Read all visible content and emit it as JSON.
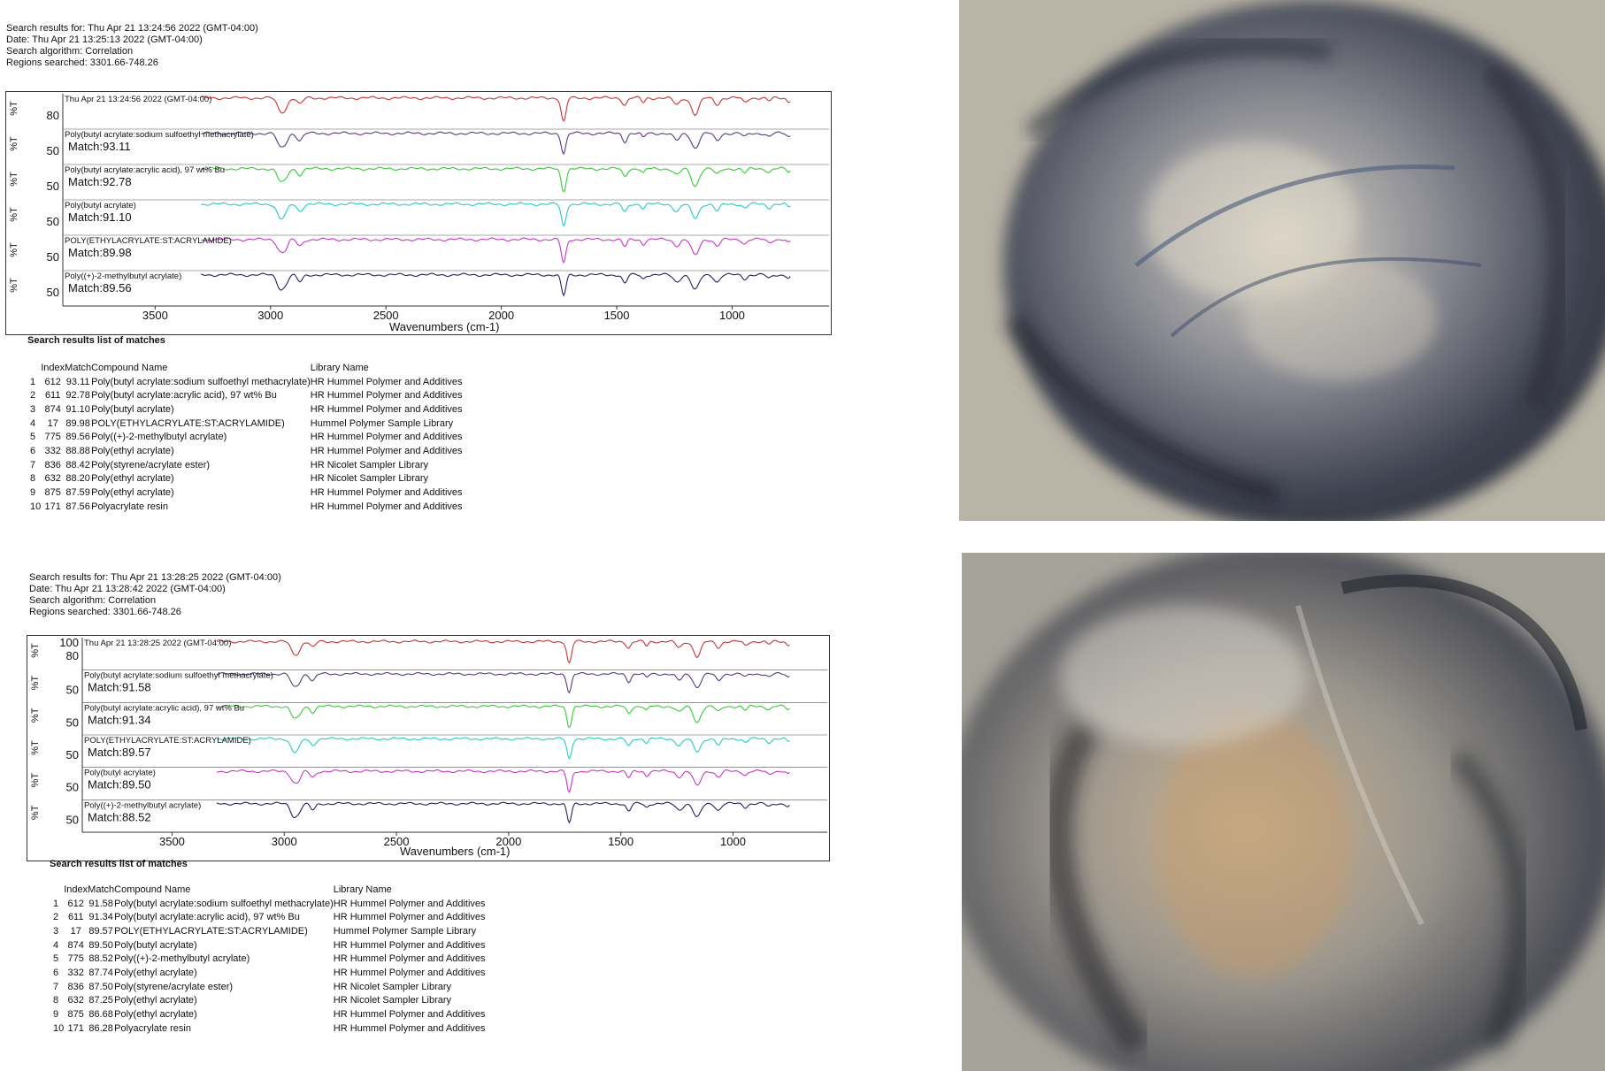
{
  "chart_data": [
    {
      "type": "line",
      "header": [
        "Search results for:  Thu Apr 21 13:24:56 2022 (GMT-04:00)",
        "Date:  Thu Apr 21 13:25:13 2022 (GMT-04:00)",
        "Search algorithm:  Correlation",
        "Regions searched:  3301.66-748.26"
      ],
      "xlabel": "Wavenumbers (cm-1)",
      "ylabel": "%T",
      "x_ticks": [
        3500,
        3000,
        2500,
        2000,
        1500,
        1000
      ],
      "xlim": [
        3900,
        580
      ],
      "series": [
        {
          "name": "Thu Apr 21 13:24:56 2022 (GMT-04:00)",
          "match": "",
          "y_tick": "80",
          "color": "#cc3333"
        },
        {
          "name": "Poly(butyl acrylate:sodium sulfoethyl methacrylate)",
          "match": "Match:93.11",
          "y_tick": "50",
          "color": "#5a3a82"
        },
        {
          "name": "Poly(butyl acrylate:acrylic acid), 97 wt% Bu",
          "match": "Match:92.78",
          "y_tick": "50",
          "color": "#33cc33"
        },
        {
          "name": "Poly(butyl acrylate)",
          "match": "Match:91.10",
          "y_tick": "50",
          "color": "#22cccc"
        },
        {
          "name": "POLY(ETHYLACRYLATE:ST:ACRYLAMIDE)",
          "match": "Match:89.98",
          "y_tick": "50",
          "color": "#cc33cc"
        },
        {
          "name": "Poly((+)-2-methylbutyl acrylate)",
          "match": "Match:89.56",
          "y_tick": "50",
          "color": "#222266"
        }
      ],
      "list_title": "Search results list of matches",
      "columns": [
        "Index",
        "Match",
        "Compound Name",
        "Library Name"
      ],
      "rows": [
        [
          "1",
          "612",
          "93.11",
          "Poly(butyl acrylate:sodium sulfoethyl methacrylate)",
          "HR Hummel Polymer and Additives"
        ],
        [
          "2",
          "611",
          "92.78",
          "Poly(butyl acrylate:acrylic acid), 97 wt% Bu",
          "HR Hummel Polymer and Additives"
        ],
        [
          "3",
          "874",
          "91.10",
          "Poly(butyl acrylate)",
          "HR Hummel Polymer and Additives"
        ],
        [
          "4",
          "17",
          "89.98",
          "POLY(ETHYLACRYLATE:ST:ACRYLAMIDE)",
          "Hummel Polymer Sample Library"
        ],
        [
          "5",
          "775",
          "89.56",
          "Poly((+)-2-methylbutyl acrylate)",
          "HR Hummel Polymer and Additives"
        ],
        [
          "6",
          "332",
          "88.88",
          "Poly(ethyl acrylate)",
          "HR Hummel Polymer and Additives"
        ],
        [
          "7",
          "836",
          "88.42",
          "Poly(styrene/acrylate ester)",
          "HR Nicolet Sampler Library"
        ],
        [
          "8",
          "632",
          "88.20",
          "Poly(ethyl acrylate)",
          "HR Nicolet Sampler Library"
        ],
        [
          "9",
          "875",
          "87.59",
          "Poly(ethyl acrylate)",
          "HR Hummel Polymer and Additives"
        ],
        [
          "10",
          "171",
          "87.56",
          "Polyacrylate resin",
          "HR Hummel Polymer and Additives"
        ]
      ]
    },
    {
      "type": "line",
      "header": [
        "Search results for:  Thu Apr 21 13:28:25 2022 (GMT-04:00)",
        "Date:  Thu Apr 21 13:28:42 2022 (GMT-04:00)",
        "Search algorithm:  Correlation",
        "Regions searched:  3301.66-748.26"
      ],
      "xlabel": "Wavenumbers (cm-1)",
      "ylabel": "%T",
      "x_ticks": [
        3500,
        3000,
        2500,
        2000,
        1500,
        1000
      ],
      "xlim": [
        3900,
        580
      ],
      "series": [
        {
          "name": "Thu Apr 21 13:28:25 2022 (GMT-04:00)",
          "match": "",
          "y_tick": "100",
          "y_tick2": "80",
          "color": "#cc3333"
        },
        {
          "name": "Poly(butyl acrylate:sodium sulfoethyl methacrylate)",
          "match": "Match:91.58",
          "y_tick": "50",
          "color": "#5a3a82"
        },
        {
          "name": "Poly(butyl acrylate:acrylic acid), 97 wt% Bu",
          "match": "Match:91.34",
          "y_tick": "50",
          "color": "#33cc33"
        },
        {
          "name": "POLY(ETHYLACRYLATE:ST:ACRYLAMIDE)",
          "match": "Match:89.57",
          "y_tick": "50",
          "color": "#22cccc"
        },
        {
          "name": "Poly(butyl acrylate)",
          "match": "Match:89.50",
          "y_tick": "50",
          "color": "#cc33cc"
        },
        {
          "name": "Poly((+)-2-methylbutyl acrylate)",
          "match": "Match:88.52",
          "y_tick": "50",
          "color": "#222266"
        }
      ],
      "list_title": "Search results list of matches",
      "columns": [
        "Index",
        "Match",
        "Compound Name",
        "Library Name"
      ],
      "rows": [
        [
          "1",
          "612",
          "91.58",
          "Poly(butyl acrylate:sodium sulfoethyl methacrylate)",
          "HR Hummel Polymer and Additives"
        ],
        [
          "2",
          "611",
          "91.34",
          "Poly(butyl acrylate:acrylic acid), 97 wt% Bu",
          "HR Hummel Polymer and Additives"
        ],
        [
          "3",
          "17",
          "89.57",
          "POLY(ETHYLACRYLATE:ST:ACRYLAMIDE)",
          "Hummel Polymer Sample Library"
        ],
        [
          "4",
          "874",
          "89.50",
          "Poly(butyl acrylate)",
          "HR Hummel Polymer and Additives"
        ],
        [
          "5",
          "775",
          "88.52",
          "Poly((+)-2-methylbutyl acrylate)",
          "HR Hummel Polymer and Additives"
        ],
        [
          "6",
          "332",
          "87.74",
          "Poly(ethyl acrylate)",
          "HR Hummel Polymer and Additives"
        ],
        [
          "7",
          "836",
          "87.50",
          "Poly(styrene/acrylate ester)",
          "HR Nicolet Sampler Library"
        ],
        [
          "8",
          "632",
          "87.25",
          "Poly(ethyl acrylate)",
          "HR Nicolet Sampler Library"
        ],
        [
          "9",
          "875",
          "86.68",
          "Poly(ethyl acrylate)",
          "HR Hummel Polymer and Additives"
        ],
        [
          "10",
          "171",
          "86.28",
          "Polyacrylate resin",
          "HR Hummel Polymer and Additives"
        ]
      ]
    }
  ]
}
